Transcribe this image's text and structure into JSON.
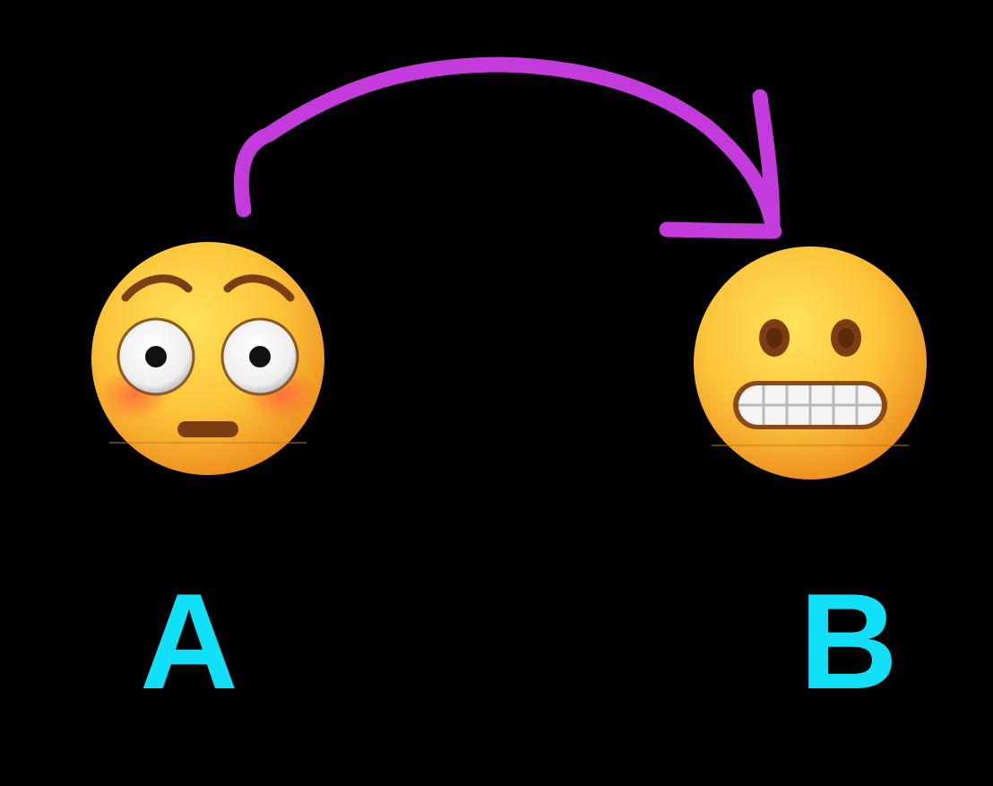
{
  "diagram": {
    "background_color": "#000000",
    "arrow": {
      "color": "#c43bdc",
      "from": "A",
      "to": "B"
    },
    "nodes": [
      {
        "id": "A",
        "label": "A",
        "label_color": "#12e0f8",
        "icon": "flushed-face-icon"
      },
      {
        "id": "B",
        "label": "B",
        "label_color": "#12e0f8",
        "icon": "grimacing-face-icon"
      }
    ]
  }
}
